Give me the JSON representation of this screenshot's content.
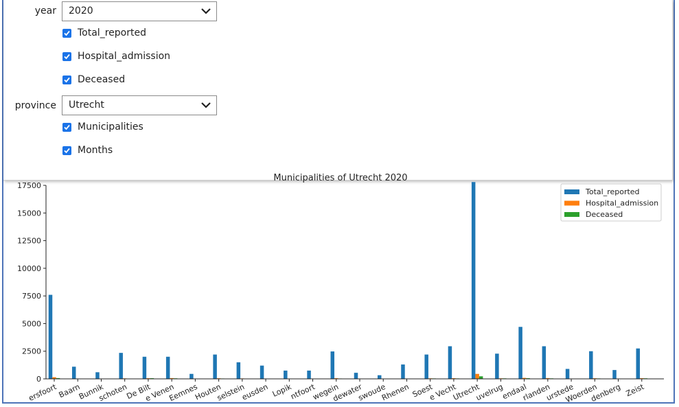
{
  "controls": {
    "year_label": "year",
    "year_value": "2020",
    "checkboxes_year": [
      {
        "label": "Total_reported",
        "checked": true
      },
      {
        "label": "Hospital_admission",
        "checked": true
      },
      {
        "label": "Deceased",
        "checked": true
      }
    ],
    "province_label": "province",
    "province_value": "Utrecht",
    "checkboxes_province": [
      {
        "label": "Municipalities",
        "checked": true
      },
      {
        "label": "Months",
        "checked": true
      }
    ]
  },
  "chart_data": {
    "type": "bar",
    "title": "Municipalities of Utrecht 2020",
    "categories": [
      "Amersfoort",
      "Baarn",
      "Bunnik",
      "Bunschoten",
      "De Bilt",
      "De Ronde Venen",
      "Eemnes",
      "Houten",
      "IJsselstein",
      "Leusden",
      "Lopik",
      "Montfoort",
      "Nieuwegein",
      "Oudewater",
      "Renswoude",
      "Rhenen",
      "Soest",
      "Stichtse Vecht",
      "Utrecht",
      "Utrechtse Heuvelrug",
      "Veenendaal",
      "Vijfheerenlanden",
      "Wijk bij Duurstede",
      "Woerden",
      "Woudenberg",
      "Zeist"
    ],
    "tick_labels_visible": [
      "ersfoort",
      "Baarn",
      "Bunnik",
      "schoten",
      "De Bilt",
      "e Venen",
      "Eemnes",
      "Houten",
      "selstein",
      "eusden",
      "Lopik",
      "ntfoort",
      "wegein",
      "dewater",
      "swoude",
      "Rhenen",
      "Soest",
      "e Vecht",
      "Utrecht",
      "uvelrug",
      "endaal",
      "rlanden",
      "urstede",
      "Woerden",
      "denberg",
      "Zeist"
    ],
    "series": [
      {
        "name": "Total_reported",
        "color": "#1f77b4",
        "values": [
          7600,
          1100,
          600,
          2350,
          2000,
          2000,
          450,
          2200,
          1500,
          1200,
          750,
          750,
          2480,
          550,
          330,
          1300,
          2200,
          2950,
          17800,
          2280,
          4700,
          2950,
          900,
          2500,
          800,
          2750
        ]
      },
      {
        "name": "Hospital_admission",
        "color": "#ff7f0e",
        "values": [
          150,
          25,
          15,
          45,
          60,
          70,
          10,
          55,
          40,
          30,
          20,
          20,
          60,
          15,
          10,
          30,
          50,
          60,
          450,
          50,
          90,
          70,
          25,
          55,
          20,
          60
        ]
      },
      {
        "name": "Deceased",
        "color": "#2ca02c",
        "values": [
          70,
          20,
          10,
          30,
          60,
          50,
          8,
          35,
          25,
          20,
          12,
          12,
          35,
          10,
          6,
          25,
          40,
          40,
          230,
          45,
          60,
          45,
          15,
          40,
          12,
          50
        ]
      }
    ],
    "yticks": [
      0,
      2500,
      5000,
      7500,
      10000,
      12500,
      15000,
      17500
    ],
    "ylim": [
      0,
      18000
    ],
    "legend_position": "top-right",
    "grid": false
  }
}
